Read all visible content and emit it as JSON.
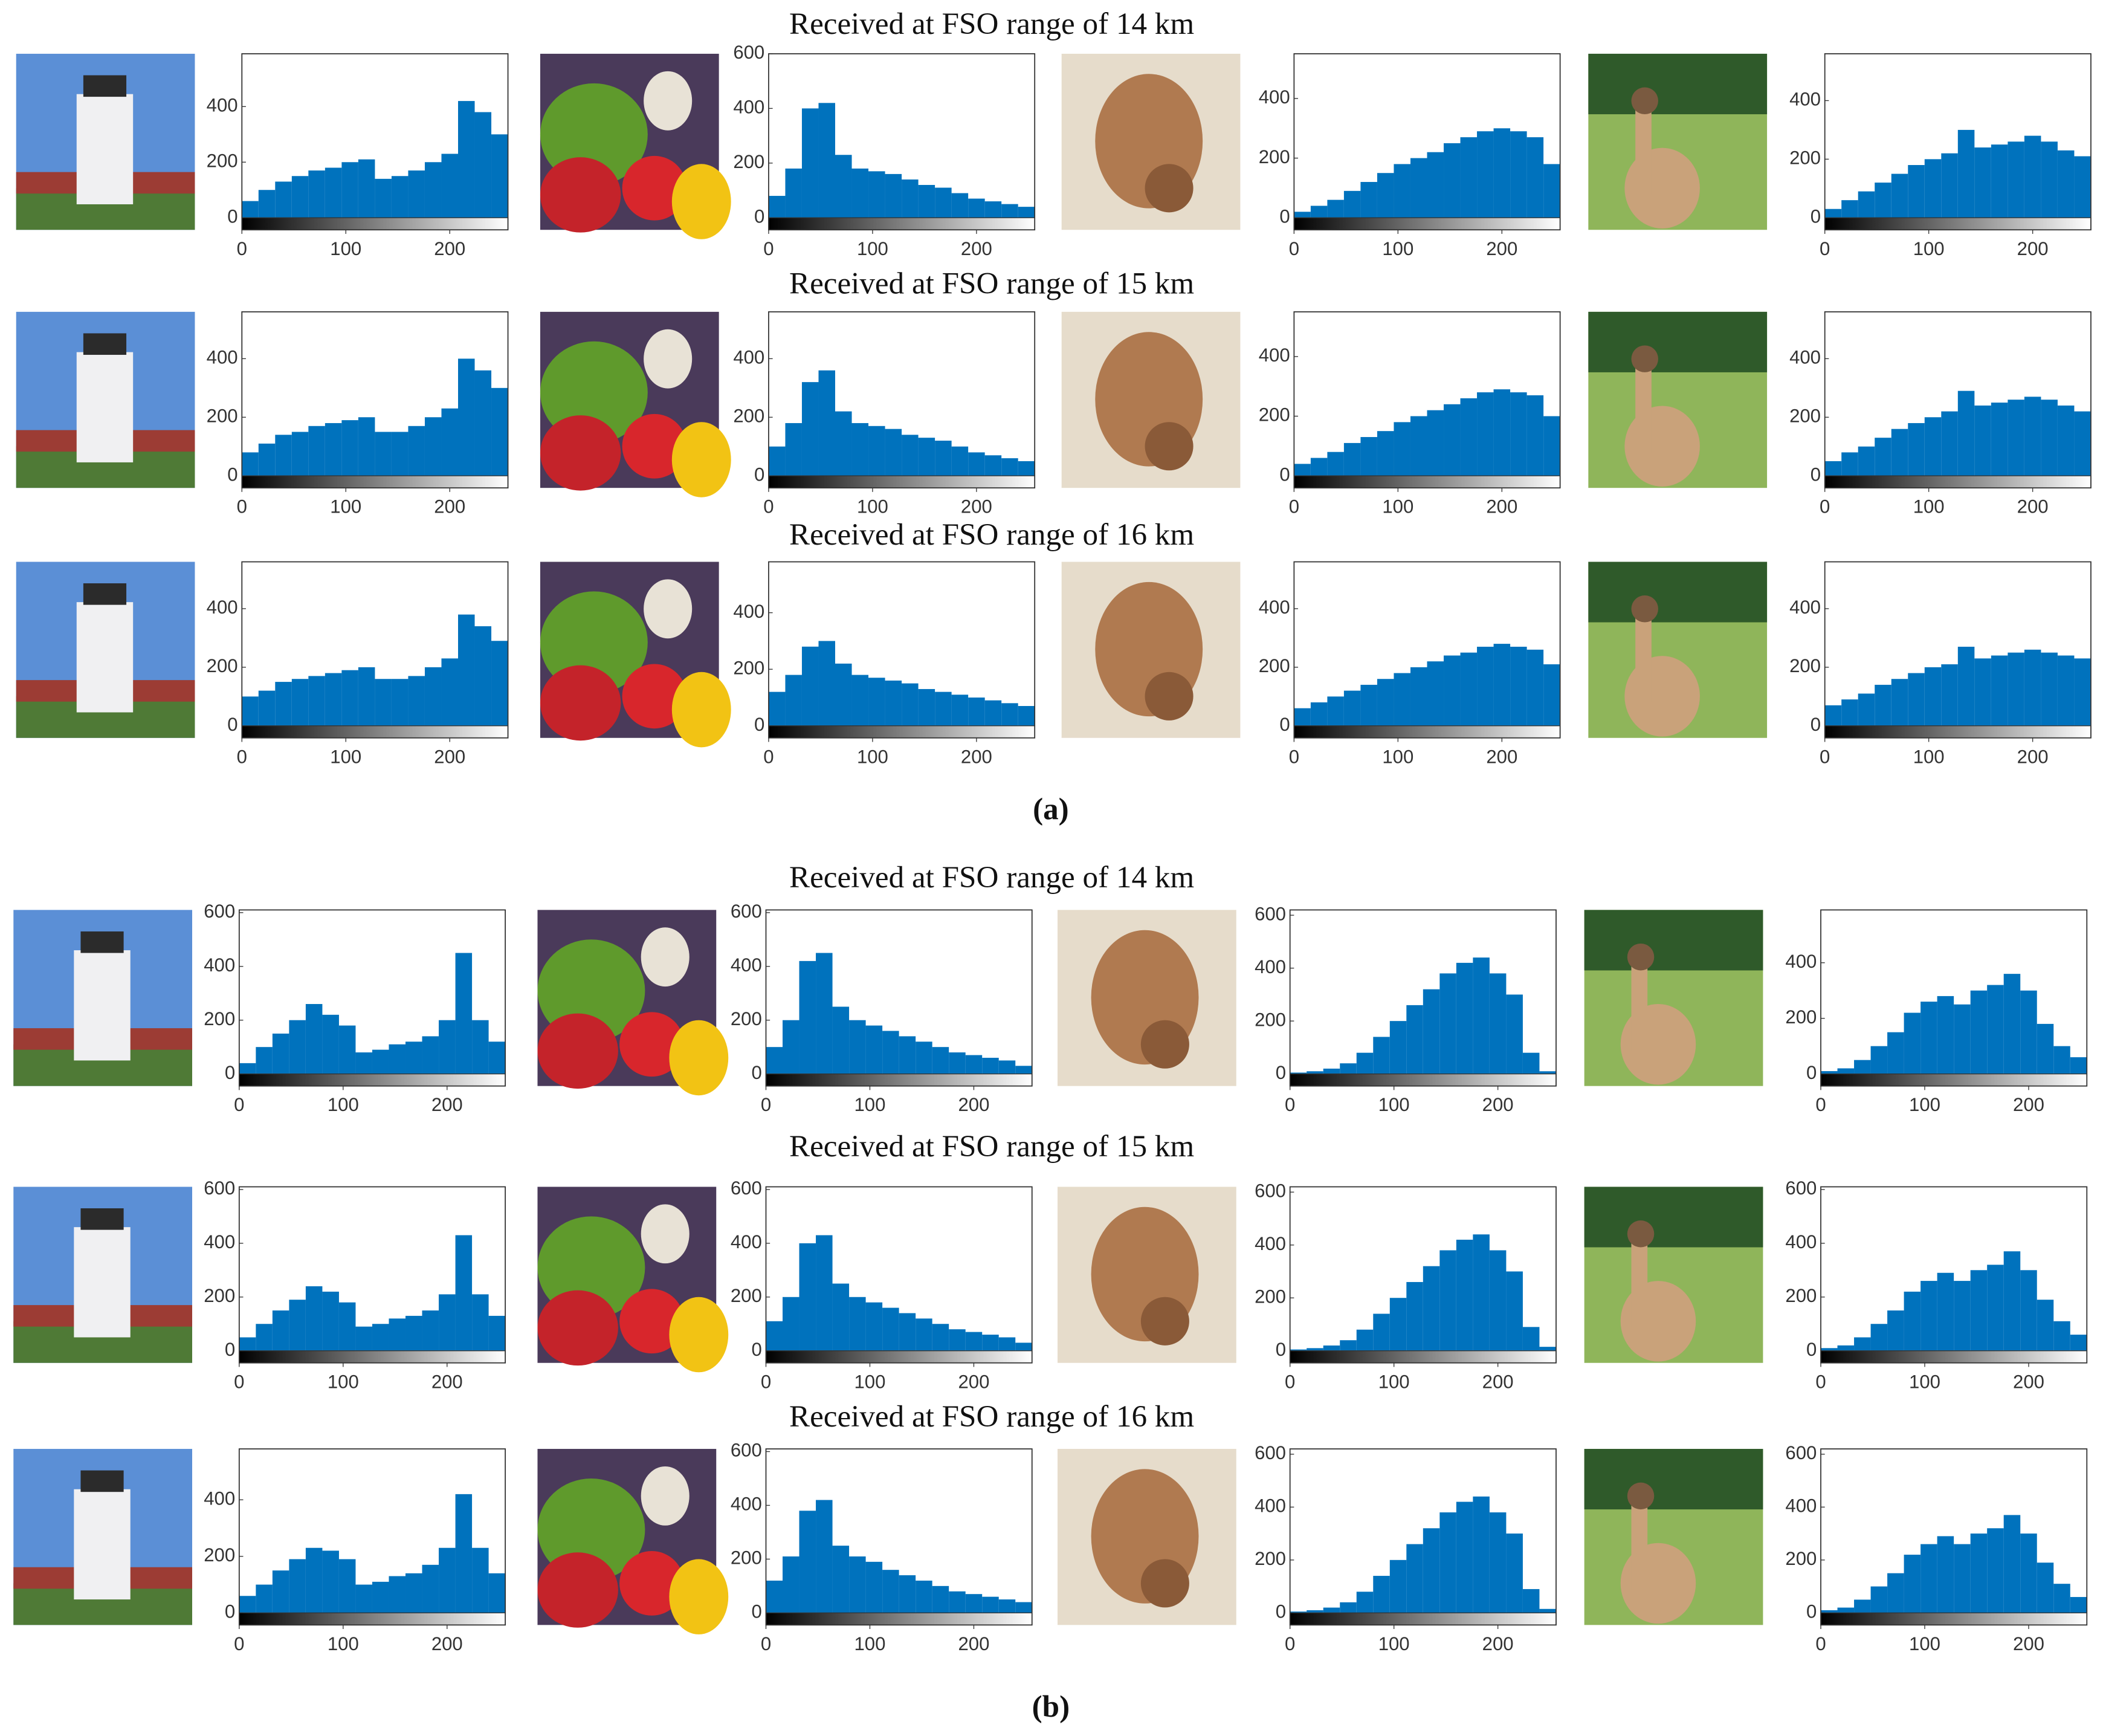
{
  "titles": [
    "Received at FSO range of 14 km",
    "Received at FSO range of 15 km",
    "Received at FSO range of 16 km",
    "Received at FSO range of 14 km",
    "Received at FSO range of 15 km",
    "Received at FSO range of 16 km"
  ],
  "panel_labels": [
    "(a)",
    "(b)"
  ],
  "chart_data": [
    {
      "type": "histogram",
      "color": "#0072bd",
      "bins": [
        0,
        16,
        32,
        48,
        64,
        80,
        96,
        112,
        128,
        144,
        160,
        176,
        192,
        208,
        224,
        240,
        256
      ],
      "values": [
        60,
        100,
        130,
        150,
        170,
        180,
        200,
        210,
        140,
        150,
        170,
        200,
        230,
        420,
        380,
        300
      ],
      "xlim": [
        0,
        256
      ],
      "xticks": [
        0,
        100,
        200
      ],
      "ylim": [
        0,
        590
      ],
      "yticks": [
        0,
        200,
        400
      ]
    },
    {
      "type": "histogram",
      "color": "#0072bd",
      "bins": [
        0,
        16,
        32,
        48,
        64,
        80,
        96,
        112,
        128,
        144,
        160,
        176,
        192,
        208,
        224,
        240,
        256
      ],
      "values": [
        80,
        180,
        400,
        420,
        230,
        180,
        170,
        160,
        140,
        120,
        110,
        90,
        70,
        60,
        50,
        40
      ],
      "xlim": [
        0,
        256
      ],
      "xticks": [
        0,
        100,
        200
      ],
      "ylim": [
        0,
        600
      ],
      "yticks": [
        0,
        200,
        400,
        600
      ]
    },
    {
      "type": "histogram",
      "color": "#0072bd",
      "bins": [
        0,
        16,
        32,
        48,
        64,
        80,
        96,
        112,
        128,
        144,
        160,
        176,
        192,
        208,
        224,
        240,
        256
      ],
      "values": [
        20,
        40,
        60,
        90,
        120,
        150,
        180,
        200,
        220,
        250,
        270,
        290,
        300,
        290,
        270,
        180
      ],
      "xlim": [
        0,
        256
      ],
      "xticks": [
        0,
        100,
        200
      ],
      "ylim": [
        0,
        550
      ],
      "yticks": [
        0,
        200,
        400
      ]
    },
    {
      "type": "histogram",
      "color": "#0072bd",
      "bins": [
        0,
        16,
        32,
        48,
        64,
        80,
        96,
        112,
        128,
        144,
        160,
        176,
        192,
        208,
        224,
        240,
        256
      ],
      "values": [
        30,
        60,
        90,
        120,
        150,
        180,
        200,
        220,
        300,
        240,
        250,
        260,
        280,
        260,
        230,
        210
      ],
      "xlim": [
        0,
        256
      ],
      "xticks": [
        0,
        100,
        200
      ],
      "ylim": [
        0,
        560
      ],
      "yticks": [
        0,
        200,
        400
      ]
    },
    {
      "type": "histogram",
      "color": "#0072bd",
      "bins": [
        0,
        16,
        32,
        48,
        64,
        80,
        96,
        112,
        128,
        144,
        160,
        176,
        192,
        208,
        224,
        240,
        256
      ],
      "values": [
        80,
        110,
        140,
        150,
        170,
        180,
        190,
        200,
        150,
        150,
        170,
        200,
        230,
        400,
        360,
        300
      ],
      "xlim": [
        0,
        256
      ],
      "xticks": [
        0,
        100,
        200
      ],
      "ylim": [
        0,
        560
      ],
      "yticks": [
        0,
        200,
        400
      ]
    },
    {
      "type": "histogram",
      "color": "#0072bd",
      "bins": [
        0,
        16,
        32,
        48,
        64,
        80,
        96,
        112,
        128,
        144,
        160,
        176,
        192,
        208,
        224,
        240,
        256
      ],
      "values": [
        100,
        180,
        320,
        360,
        220,
        180,
        170,
        160,
        140,
        130,
        120,
        100,
        80,
        70,
        60,
        50
      ],
      "xlim": [
        0,
        256
      ],
      "xticks": [
        0,
        100,
        200
      ],
      "ylim": [
        0,
        560
      ],
      "yticks": [
        0,
        200,
        400
      ]
    },
    {
      "type": "histogram",
      "color": "#0072bd",
      "bins": [
        0,
        16,
        32,
        48,
        64,
        80,
        96,
        112,
        128,
        144,
        160,
        176,
        192,
        208,
        224,
        240,
        256
      ],
      "values": [
        40,
        60,
        80,
        110,
        130,
        150,
        180,
        200,
        220,
        240,
        260,
        280,
        290,
        280,
        270,
        200
      ],
      "xlim": [
        0,
        256
      ],
      "xticks": [
        0,
        100,
        200
      ],
      "ylim": [
        0,
        550
      ],
      "yticks": [
        0,
        200,
        400
      ]
    },
    {
      "type": "histogram",
      "color": "#0072bd",
      "bins": [
        0,
        16,
        32,
        48,
        64,
        80,
        96,
        112,
        128,
        144,
        160,
        176,
        192,
        208,
        224,
        240,
        256
      ],
      "values": [
        50,
        80,
        100,
        130,
        160,
        180,
        200,
        220,
        290,
        240,
        250,
        260,
        270,
        260,
        240,
        220
      ],
      "xlim": [
        0,
        256
      ],
      "xticks": [
        0,
        100,
        200
      ],
      "ylim": [
        0,
        560
      ],
      "yticks": [
        0,
        200,
        400
      ]
    },
    {
      "type": "histogram",
      "color": "#0072bd",
      "bins": [
        0,
        16,
        32,
        48,
        64,
        80,
        96,
        112,
        128,
        144,
        160,
        176,
        192,
        208,
        224,
        240,
        256
      ],
      "values": [
        100,
        120,
        150,
        160,
        170,
        180,
        190,
        200,
        160,
        160,
        170,
        200,
        230,
        380,
        340,
        290
      ],
      "xlim": [
        0,
        256
      ],
      "xticks": [
        0,
        100,
        200
      ],
      "ylim": [
        0,
        560
      ],
      "yticks": [
        0,
        200,
        400
      ]
    },
    {
      "type": "histogram",
      "color": "#0072bd",
      "bins": [
        0,
        16,
        32,
        48,
        64,
        80,
        96,
        112,
        128,
        144,
        160,
        176,
        192,
        208,
        224,
        240,
        256
      ],
      "values": [
        120,
        180,
        280,
        300,
        220,
        180,
        170,
        160,
        150,
        130,
        120,
        110,
        100,
        90,
        80,
        70
      ],
      "xlim": [
        0,
        256
      ],
      "xticks": [
        0,
        100,
        200
      ],
      "ylim": [
        0,
        580
      ],
      "yticks": [
        0,
        200,
        400
      ]
    },
    {
      "type": "histogram",
      "color": "#0072bd",
      "bins": [
        0,
        16,
        32,
        48,
        64,
        80,
        96,
        112,
        128,
        144,
        160,
        176,
        192,
        208,
        224,
        240,
        256
      ],
      "values": [
        60,
        80,
        100,
        120,
        140,
        160,
        180,
        200,
        220,
        240,
        250,
        270,
        280,
        270,
        260,
        210
      ],
      "xlim": [
        0,
        256
      ],
      "xticks": [
        0,
        100,
        200
      ],
      "ylim": [
        0,
        560
      ],
      "yticks": [
        0,
        200,
        400
      ]
    },
    {
      "type": "histogram",
      "color": "#0072bd",
      "bins": [
        0,
        16,
        32,
        48,
        64,
        80,
        96,
        112,
        128,
        144,
        160,
        176,
        192,
        208,
        224,
        240,
        256
      ],
      "values": [
        70,
        90,
        110,
        140,
        160,
        180,
        200,
        210,
        270,
        230,
        240,
        250,
        260,
        250,
        240,
        230
      ],
      "xlim": [
        0,
        256
      ],
      "xticks": [
        0,
        100,
        200
      ],
      "ylim": [
        0,
        560
      ],
      "yticks": [
        0,
        200,
        400
      ]
    },
    {
      "type": "histogram",
      "color": "#0072bd",
      "bins": [
        0,
        16,
        32,
        48,
        64,
        80,
        96,
        112,
        128,
        144,
        160,
        176,
        192,
        208,
        224,
        240,
        256
      ],
      "values": [
        40,
        100,
        150,
        200,
        260,
        220,
        180,
        80,
        90,
        110,
        120,
        140,
        200,
        450,
        200,
        120
      ],
      "xlim": [
        0,
        256
      ],
      "xticks": [
        0,
        100,
        200
      ],
      "ylim": [
        0,
        610
      ],
      "yticks": [
        0,
        200,
        400,
        600
      ]
    },
    {
      "type": "histogram",
      "color": "#0072bd",
      "bins": [
        0,
        16,
        32,
        48,
        64,
        80,
        96,
        112,
        128,
        144,
        160,
        176,
        192,
        208,
        224,
        240,
        256
      ],
      "values": [
        100,
        200,
        420,
        450,
        250,
        200,
        180,
        160,
        140,
        120,
        100,
        80,
        70,
        60,
        50,
        30
      ],
      "xlim": [
        0,
        256
      ],
      "xticks": [
        0,
        100,
        200
      ],
      "ylim": [
        0,
        610
      ],
      "yticks": [
        0,
        200,
        400,
        600
      ]
    },
    {
      "type": "histogram",
      "color": "#0072bd",
      "bins": [
        0,
        16,
        32,
        48,
        64,
        80,
        96,
        112,
        128,
        144,
        160,
        176,
        192,
        208,
        224,
        240,
        256
      ],
      "values": [
        5,
        10,
        20,
        40,
        80,
        140,
        200,
        260,
        320,
        380,
        420,
        440,
        380,
        300,
        80,
        10
      ],
      "xlim": [
        0,
        256
      ],
      "xticks": [
        0,
        100,
        200
      ],
      "ylim": [
        0,
        620
      ],
      "yticks": [
        0,
        200,
        400,
        600
      ]
    },
    {
      "type": "histogram",
      "color": "#0072bd",
      "bins": [
        0,
        16,
        32,
        48,
        64,
        80,
        96,
        112,
        128,
        144,
        160,
        176,
        192,
        208,
        224,
        240,
        256
      ],
      "values": [
        10,
        20,
        50,
        100,
        150,
        220,
        260,
        280,
        250,
        300,
        320,
        360,
        300,
        180,
        100,
        60
      ],
      "xlim": [
        0,
        256
      ],
      "xticks": [
        0,
        100,
        200
      ],
      "ylim": [
        0,
        590
      ],
      "yticks": [
        0,
        200,
        400
      ]
    },
    {
      "type": "histogram",
      "color": "#0072bd",
      "bins": [
        0,
        16,
        32,
        48,
        64,
        80,
        96,
        112,
        128,
        144,
        160,
        176,
        192,
        208,
        224,
        240,
        256
      ],
      "values": [
        50,
        100,
        150,
        190,
        240,
        220,
        180,
        90,
        100,
        120,
        130,
        150,
        210,
        430,
        210,
        130
      ],
      "xlim": [
        0,
        256
      ],
      "xticks": [
        0,
        100,
        200
      ],
      "ylim": [
        0,
        610
      ],
      "yticks": [
        0,
        200,
        400,
        600
      ]
    },
    {
      "type": "histogram",
      "color": "#0072bd",
      "bins": [
        0,
        16,
        32,
        48,
        64,
        80,
        96,
        112,
        128,
        144,
        160,
        176,
        192,
        208,
        224,
        240,
        256
      ],
      "values": [
        110,
        200,
        400,
        430,
        250,
        200,
        180,
        160,
        140,
        120,
        100,
        80,
        70,
        60,
        50,
        30
      ],
      "xlim": [
        0,
        256
      ],
      "xticks": [
        0,
        100,
        200
      ],
      "ylim": [
        0,
        610
      ],
      "yticks": [
        0,
        200,
        400,
        600
      ]
    },
    {
      "type": "histogram",
      "color": "#0072bd",
      "bins": [
        0,
        16,
        32,
        48,
        64,
        80,
        96,
        112,
        128,
        144,
        160,
        176,
        192,
        208,
        224,
        240,
        256
      ],
      "values": [
        5,
        10,
        20,
        40,
        80,
        140,
        200,
        260,
        320,
        380,
        420,
        440,
        380,
        300,
        90,
        15
      ],
      "xlim": [
        0,
        256
      ],
      "xticks": [
        0,
        100,
        200
      ],
      "ylim": [
        0,
        620
      ],
      "yticks": [
        0,
        200,
        400,
        600
      ]
    },
    {
      "type": "histogram",
      "color": "#0072bd",
      "bins": [
        0,
        16,
        32,
        48,
        64,
        80,
        96,
        112,
        128,
        144,
        160,
        176,
        192,
        208,
        224,
        240,
        256
      ],
      "values": [
        10,
        20,
        50,
        100,
        150,
        220,
        260,
        290,
        260,
        300,
        320,
        370,
        300,
        190,
        110,
        60
      ],
      "xlim": [
        0,
        256
      ],
      "xticks": [
        0,
        100,
        200
      ],
      "ylim": [
        0,
        610
      ],
      "yticks": [
        0,
        200,
        400,
        600
      ]
    },
    {
      "type": "histogram",
      "color": "#0072bd",
      "bins": [
        0,
        16,
        32,
        48,
        64,
        80,
        96,
        112,
        128,
        144,
        160,
        176,
        192,
        208,
        224,
        240,
        256
      ],
      "values": [
        60,
        100,
        150,
        190,
        230,
        220,
        190,
        100,
        110,
        130,
        140,
        170,
        230,
        420,
        230,
        140
      ],
      "xlim": [
        0,
        256
      ],
      "xticks": [
        0,
        100,
        200
      ],
      "ylim": [
        0,
        580
      ],
      "yticks": [
        0,
        200,
        400
      ]
    },
    {
      "type": "histogram",
      "color": "#0072bd",
      "bins": [
        0,
        16,
        32,
        48,
        64,
        80,
        96,
        112,
        128,
        144,
        160,
        176,
        192,
        208,
        224,
        240,
        256
      ],
      "values": [
        120,
        210,
        380,
        420,
        250,
        210,
        190,
        160,
        140,
        120,
        100,
        80,
        70,
        60,
        50,
        40
      ],
      "xlim": [
        0,
        256
      ],
      "xticks": [
        0,
        100,
        200
      ],
      "ylim": [
        0,
        610
      ],
      "yticks": [
        0,
        200,
        400,
        600
      ]
    },
    {
      "type": "histogram",
      "color": "#0072bd",
      "bins": [
        0,
        16,
        32,
        48,
        64,
        80,
        96,
        112,
        128,
        144,
        160,
        176,
        192,
        208,
        224,
        240,
        256
      ],
      "values": [
        5,
        10,
        20,
        40,
        80,
        140,
        200,
        260,
        320,
        380,
        420,
        440,
        380,
        300,
        90,
        15
      ],
      "xlim": [
        0,
        256
      ],
      "xticks": [
        0,
        100,
        200
      ],
      "ylim": [
        0,
        620
      ],
      "yticks": [
        0,
        200,
        400,
        600
      ]
    },
    {
      "type": "histogram",
      "color": "#0072bd",
      "bins": [
        0,
        16,
        32,
        48,
        64,
        80,
        96,
        112,
        128,
        144,
        160,
        176,
        192,
        208,
        224,
        240,
        256
      ],
      "values": [
        10,
        20,
        50,
        100,
        150,
        220,
        260,
        290,
        260,
        300,
        320,
        370,
        300,
        190,
        110,
        60
      ],
      "xlim": [
        0,
        256
      ],
      "xticks": [
        0,
        100,
        200
      ],
      "ylim": [
        0,
        620
      ],
      "yticks": [
        0,
        200,
        400,
        600
      ]
    }
  ]
}
